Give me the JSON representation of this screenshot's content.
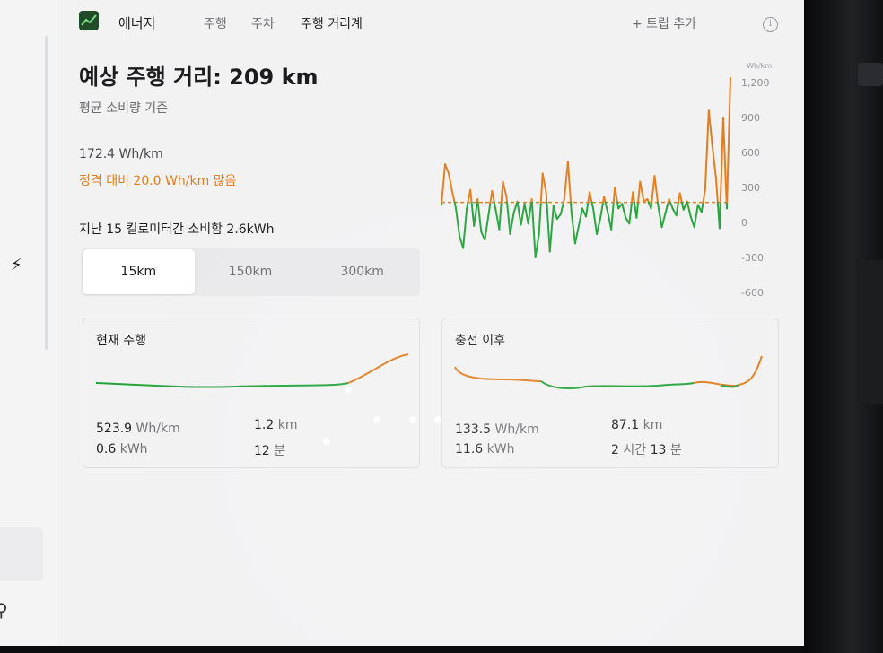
{
  "nav": {
    "app_name": "에너지",
    "tabs": [
      {
        "label": "주행",
        "active": false
      },
      {
        "label": "주차",
        "active": false
      },
      {
        "label": "주행 거리계",
        "active": true
      }
    ],
    "add_trip": "+ 트립 추가",
    "info": "i"
  },
  "summary": {
    "title": "예상 주행 거리: 209 km",
    "subtitle": "평균 소비량 기준",
    "avg_consumption": "172.4 Wh/km",
    "delta_text": "정격 대비 20.0 Wh/km 많음",
    "consumed_text": "지난 15 킬로미터간 소비함 2.6kWh"
  },
  "range_selector": {
    "options": [
      {
        "label": "15km",
        "active": true
      },
      {
        "label": "150km",
        "active": false
      },
      {
        "label": "300km",
        "active": false
      }
    ]
  },
  "colors": {
    "orange": "#e27d1e",
    "green": "#22a33a",
    "text": "#1c1c1e",
    "muted": "#6e6e73"
  },
  "chart_data": {
    "type": "line",
    "y_unit_label": "Wh/km",
    "y_ticks": [
      "1,200",
      "900",
      "600",
      "300",
      "0",
      "-300",
      "-600"
    ],
    "ylim": [
      -600,
      1200
    ],
    "reference_value": 172.4,
    "reference_style": "dashed orange",
    "above_color": "orange",
    "below_color": "green",
    "x": [
      0,
      1,
      2,
      3,
      4,
      5,
      6,
      7,
      8,
      9,
      10,
      11,
      12,
      13,
      14,
      15,
      16,
      17,
      18,
      19,
      20,
      21,
      22,
      23,
      24,
      25,
      26,
      27,
      28,
      29,
      30,
      31,
      32,
      33,
      34,
      35,
      36,
      37,
      38,
      39,
      40,
      41,
      42,
      43,
      44,
      45,
      46,
      47,
      48,
      49,
      50,
      51,
      52,
      53,
      54,
      55,
      56,
      57,
      58,
      59,
      60,
      61,
      62,
      63,
      64,
      65,
      66,
      67,
      68,
      69,
      70,
      71,
      72,
      73,
      74,
      75,
      76,
      77,
      78,
      79,
      80
    ],
    "values": [
      150,
      500,
      420,
      260,
      120,
      -120,
      -220,
      120,
      280,
      -30,
      200,
      -80,
      -150,
      60,
      270,
      110,
      -60,
      350,
      220,
      -100,
      80,
      180,
      -20,
      160,
      -10,
      200,
      -300,
      -100,
      420,
      250,
      -250,
      140,
      30,
      70,
      200,
      520,
      80,
      -180,
      -30,
      120,
      50,
      260,
      120,
      -100,
      40,
      220,
      90,
      -60,
      300,
      120,
      160,
      40,
      -10,
      260,
      40,
      350,
      180,
      200,
      120,
      400,
      140,
      -40,
      80,
      200,
      120,
      60,
      250,
      110,
      180,
      50,
      -40,
      150,
      90,
      280,
      960,
      650,
      380,
      -50,
      900,
      120,
      1240
    ],
    "title": ""
  },
  "cards": [
    {
      "title": "현재 주행",
      "efficiency": {
        "value": "523.9",
        "unit": "Wh/km"
      },
      "energy": {
        "value": "0.6",
        "unit": "kWh"
      },
      "distance": {
        "value": "1.2",
        "unit": "km"
      },
      "time": {
        "value": "12",
        "unit": "분"
      }
    },
    {
      "title": "충전 이후",
      "efficiency": {
        "value": "133.5",
        "unit": "Wh/km"
      },
      "energy": {
        "value": "11.6",
        "unit": "kWh"
      },
      "distance": {
        "value": "87.1",
        "unit": "km"
      },
      "time": {
        "value": "2",
        "unit": "시간",
        "value2": "13",
        "unit2": "분"
      }
    }
  ]
}
